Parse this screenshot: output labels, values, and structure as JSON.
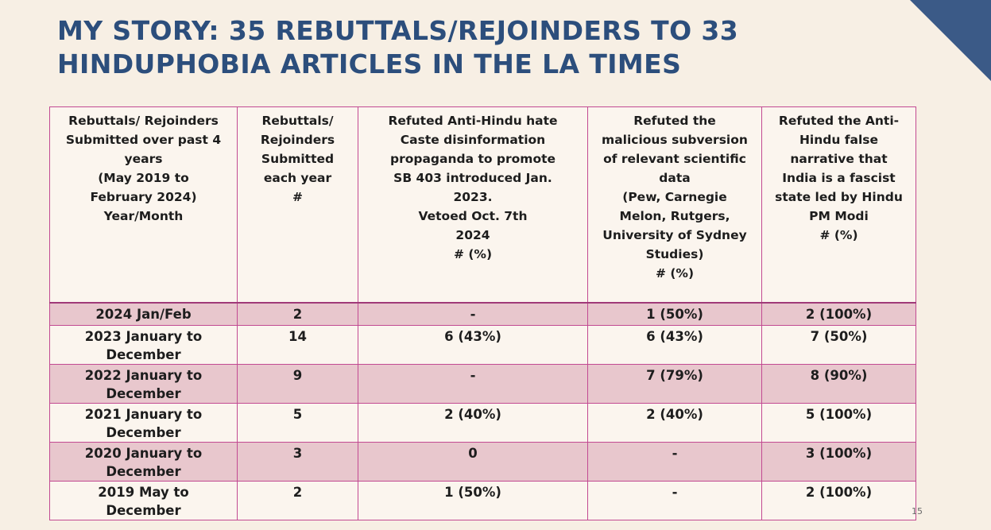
{
  "title": {
    "line1": "MY STORY: 35 REBUTTALS/REJOINDERS TO 33",
    "line2": "HINDUPHOBIA ARTICLES IN THE LA TIMES"
  },
  "table": {
    "headers": [
      "Rebuttals/ Rejoinders\nSubmitted over past 4\nyears\n(May 2019 to\nFebruary 2024)\nYear/Month",
      "Rebuttals/\nRejoinders\nSubmitted\neach year\n#",
      "Refuted Anti-Hindu hate\nCaste disinformation\npropaganda to promote\nSB 403 introduced Jan.\n2023.\nVetoed Oct. 7th\n2024\n# (%)",
      "Refuted the\nmalicious subversion\nof relevant scientific\ndata\n(Pew, Carnegie\nMelon, Rutgers,\nUniversity of Sydney\nStudies)\n# (%)",
      "Refuted the Anti-\nHindu false\nnarrative that\nIndia is a fascist\nstate led by Hindu\nPM Modi\n# (%)"
    ],
    "rows": [
      [
        "2024 Jan/Feb",
        "2",
        "-",
        "1 (50%)",
        "2 (100%)"
      ],
      [
        "2023 January to\nDecember",
        "14",
        "6 (43%)",
        "6 (43%)",
        "7 (50%)"
      ],
      [
        "2022 January to\nDecember",
        "9",
        "-",
        "7 (79%)",
        "8 (90%)"
      ],
      [
        "2021 January to\nDecember",
        "5",
        "2 (40%)",
        "2 (40%)",
        "5 (100%)"
      ],
      [
        "2020 January to\nDecember",
        "3",
        "0",
        "-",
        "3 (100%)"
      ],
      [
        "2019 May to\nDecember",
        "2",
        "1 (50%)",
        "-",
        "2 (100%)"
      ]
    ]
  },
  "page_number": "15",
  "colors": {
    "background": "#f7efe4",
    "title": "#2c4e7c",
    "accent_corner": "#3b5a87",
    "table_border": "#c24a92",
    "row_shade": "#e8c7cd"
  }
}
